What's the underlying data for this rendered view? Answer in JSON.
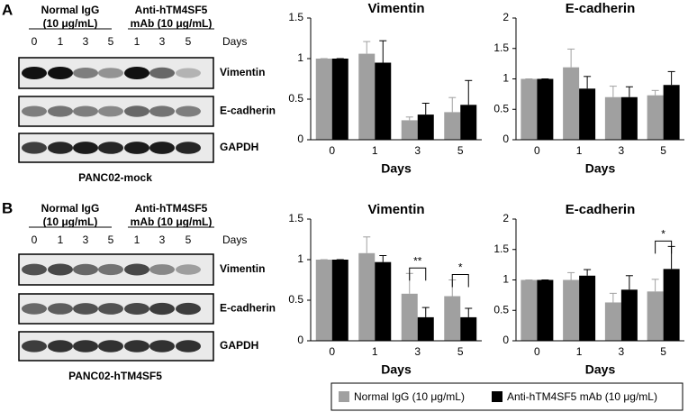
{
  "blots": [
    {
      "label": "A",
      "groups": [
        [
          "Normal IgG",
          "(10 μg/mL)"
        ],
        [
          "Anti-hTM4SF5",
          "mAb (10 μg/mL)"
        ]
      ],
      "lanes": [
        "0",
        "1",
        "3",
        "5",
        "1",
        "3",
        "5"
      ],
      "lane_axis": "Days",
      "proteins": [
        "Vimentin",
        "E-cadherin",
        "GAPDH"
      ],
      "caption": "PANC02-mock"
    },
    {
      "label": "B",
      "groups": [
        [
          "Normal IgG",
          "(10 μg/mL)"
        ],
        [
          "Anti-hTM4SF5",
          "mAb (10 μg/mL)"
        ]
      ],
      "lanes": [
        "0",
        "1",
        "3",
        "5",
        "1",
        "3",
        "5"
      ],
      "lane_axis": "Days",
      "proteins": [
        "Vimentin",
        "E-cadherin",
        "GAPDH"
      ],
      "caption": "PANC02-hTM4SF5"
    }
  ],
  "legend": [
    {
      "name": "Normal IgG (10 μg/mL)",
      "color": "#a0a0a0"
    },
    {
      "name": "Anti-hTM4SF5 mAb (10 μg/mL)",
      "color": "#000000"
    }
  ],
  "chart_data": [
    {
      "type": "bar",
      "title": "Vimentin",
      "x_label": "Days",
      "categories": [
        "0",
        "1",
        "3",
        "5"
      ],
      "ylim": [
        0,
        1.5
      ],
      "yticks": [
        0,
        0.5,
        1,
        1.5
      ],
      "series": [
        {
          "values": [
            1,
            1.06,
            0.24,
            0.34
          ],
          "errors": [
            0,
            0.15,
            0.04,
            0.18
          ]
        },
        {
          "values": [
            1,
            0.95,
            0.31,
            0.43
          ],
          "errors": [
            0,
            0.27,
            0.14,
            0.3
          ]
        }
      ],
      "annotations": []
    },
    {
      "type": "bar",
      "title": "E-cadherin",
      "x_label": "Days",
      "categories": [
        "0",
        "1",
        "3",
        "5"
      ],
      "ylim": [
        0,
        2
      ],
      "yticks": [
        0,
        0.5,
        1,
        1.5,
        2
      ],
      "series": [
        {
          "values": [
            1,
            1.19,
            0.7,
            0.73
          ],
          "errors": [
            0,
            0.3,
            0.18,
            0.08
          ]
        },
        {
          "values": [
            1,
            0.84,
            0.7,
            0.9
          ],
          "errors": [
            0,
            0.2,
            0.17,
            0.22
          ]
        }
      ],
      "annotations": []
    },
    {
      "type": "bar",
      "title": "Vimentin",
      "x_label": "Days",
      "categories": [
        "0",
        "1",
        "3",
        "5"
      ],
      "ylim": [
        0,
        1.5
      ],
      "yticks": [
        0,
        0.5,
        1,
        1.5
      ],
      "series": [
        {
          "values": [
            1,
            1.08,
            0.58,
            0.55
          ],
          "errors": [
            0,
            0.2,
            0.25,
            0.2
          ]
        },
        {
          "values": [
            1,
            0.97,
            0.29,
            0.29
          ],
          "errors": [
            0,
            0.08,
            0.12,
            0.11
          ]
        }
      ],
      "annotations": [
        {
          "text": "**",
          "category": "3"
        },
        {
          "text": "*",
          "category": "5"
        }
      ]
    },
    {
      "type": "bar",
      "title": "E-cadherin",
      "x_label": "Days",
      "categories": [
        "0",
        "1",
        "3",
        "5"
      ],
      "ylim": [
        0,
        2
      ],
      "yticks": [
        0,
        0.5,
        1,
        1.5,
        2
      ],
      "series": [
        {
          "values": [
            1,
            1.0,
            0.63,
            0.81
          ],
          "errors": [
            0,
            0.12,
            0.15,
            0.2
          ]
        },
        {
          "values": [
            1,
            1.07,
            0.84,
            1.18
          ],
          "errors": [
            0,
            0.1,
            0.23,
            0.37
          ]
        }
      ],
      "annotations": [
        {
          "text": "*",
          "category": "5"
        }
      ]
    }
  ]
}
